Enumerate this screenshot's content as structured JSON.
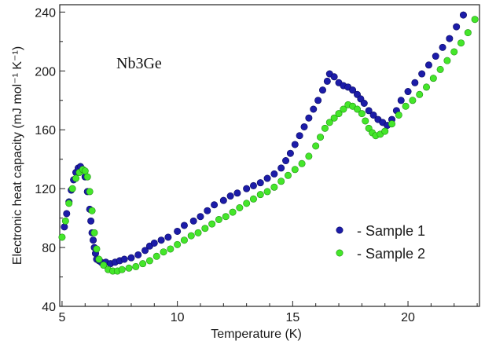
{
  "chart_data": {
    "type": "scatter",
    "annotation": "Nb3Ge",
    "xlabel": "Temperature (K)",
    "ylabel": "Electronic heat capacity (mJ mol⁻¹ K⁻¹)",
    "xlim": [
      4.9,
      23.1
    ],
    "ylim": [
      40,
      245
    ],
    "xticks": [
      5,
      10,
      15,
      20
    ],
    "yticks": [
      40,
      80,
      120,
      160,
      200,
      240
    ],
    "grid": false,
    "legend_position": "bottom-right",
    "series": [
      {
        "name": "-  Sample 1",
        "color": "#1c1ca8",
        "x": [
          5.1,
          5.2,
          5.3,
          5.4,
          5.5,
          5.6,
          5.7,
          5.8,
          5.9,
          6.0,
          6.1,
          6.2,
          6.25,
          6.3,
          6.35,
          6.4,
          6.45,
          6.5,
          6.6,
          6.7,
          6.9,
          7.1,
          7.3,
          7.5,
          7.7,
          8.0,
          8.3,
          8.6,
          8.8,
          9.0,
          9.3,
          9.6,
          10.0,
          10.3,
          10.7,
          11.0,
          11.3,
          11.6,
          12.0,
          12.3,
          12.6,
          13.0,
          13.3,
          13.6,
          13.9,
          14.2,
          14.5,
          14.7,
          14.9,
          15.1,
          15.3,
          15.5,
          15.7,
          15.9,
          16.1,
          16.3,
          16.5,
          16.6,
          16.8,
          17.0,
          17.2,
          17.4,
          17.6,
          17.8,
          17.95,
          18.1,
          18.3,
          18.5,
          18.7,
          18.9,
          19.1,
          19.3,
          19.5,
          19.7,
          20.0,
          20.3,
          20.6,
          20.9,
          21.2,
          21.5,
          21.8,
          22.1,
          22.4
        ],
        "y": [
          94,
          103,
          111,
          119,
          126,
          131,
          134,
          135,
          133,
          128,
          118,
          106,
          98,
          90,
          85,
          80,
          76,
          72,
          71,
          70,
          70,
          69,
          70,
          71,
          72,
          73,
          75,
          78,
          81,
          83,
          85,
          87,
          91,
          95,
          98,
          101,
          105,
          109,
          112,
          115,
          117,
          120,
          122,
          124,
          127,
          130,
          134,
          139,
          144,
          150,
          156,
          162,
          168,
          174,
          180,
          187,
          193,
          198,
          196,
          192,
          190,
          189,
          187,
          184,
          181,
          178,
          173,
          170,
          167,
          165,
          163,
          167,
          173,
          180,
          186,
          192,
          198,
          204,
          210,
          216,
          222,
          230,
          238
        ]
      },
      {
        "name": "-  Sample 2",
        "color": "#44e62a",
        "x": [
          5.0,
          5.15,
          5.3,
          5.45,
          5.6,
          5.75,
          5.9,
          6.0,
          6.1,
          6.2,
          6.3,
          6.4,
          6.5,
          6.6,
          6.8,
          7.0,
          7.2,
          7.4,
          7.6,
          7.9,
          8.2,
          8.5,
          8.8,
          9.1,
          9.4,
          9.7,
          10.0,
          10.3,
          10.6,
          10.9,
          11.2,
          11.5,
          11.8,
          12.1,
          12.4,
          12.7,
          13.0,
          13.3,
          13.6,
          13.9,
          14.2,
          14.5,
          14.8,
          15.1,
          15.4,
          15.7,
          16.0,
          16.2,
          16.4,
          16.6,
          16.8,
          17.0,
          17.2,
          17.4,
          17.6,
          17.8,
          18.0,
          18.15,
          18.3,
          18.45,
          18.6,
          18.8,
          19.0,
          19.3,
          19.6,
          19.9,
          20.2,
          20.5,
          20.8,
          21.1,
          21.4,
          21.7,
          22.0,
          22.3,
          22.6,
          22.9
        ],
        "y": [
          87,
          98,
          110,
          120,
          127,
          131,
          133,
          132,
          128,
          118,
          105,
          90,
          79,
          72,
          68,
          65,
          64,
          64,
          65,
          66,
          67,
          69,
          71,
          74,
          77,
          79,
          82,
          85,
          88,
          90,
          93,
          96,
          99,
          101,
          104,
          107,
          110,
          113,
          116,
          118,
          121,
          125,
          129,
          133,
          137,
          142,
          149,
          155,
          161,
          165,
          168,
          171,
          174,
          177,
          176,
          174,
          171,
          166,
          161,
          158,
          156,
          157,
          159,
          164,
          170,
          176,
          180,
          184,
          189,
          195,
          201,
          207,
          213,
          219,
          226,
          235
        ]
      }
    ]
  }
}
